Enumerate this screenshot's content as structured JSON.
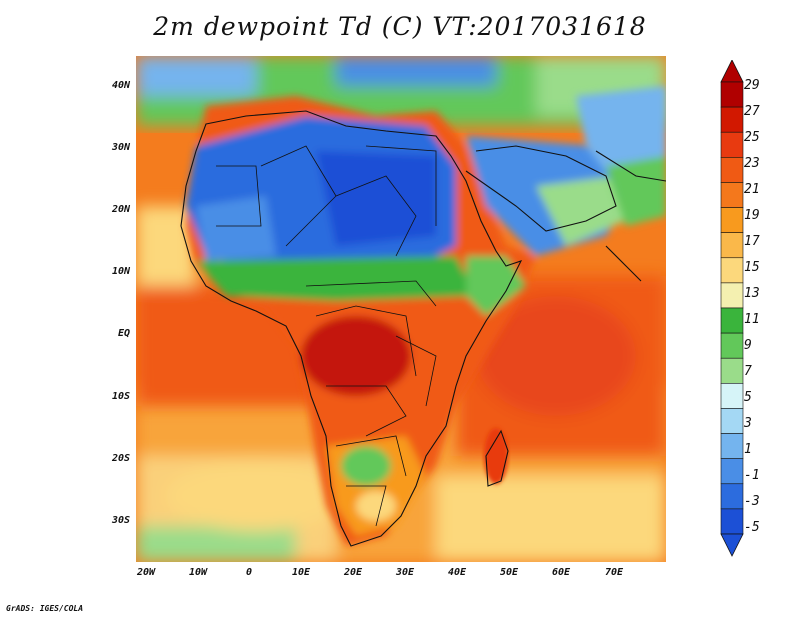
{
  "title": "2m dewpoint Td (C) VT:2017031618",
  "credit": "GrADS: IGES/COLA",
  "map": {
    "lat_labels": [
      "40N",
      "30N",
      "20N",
      "10N",
      "EQ",
      "10S",
      "20S",
      "30S"
    ],
    "lon_labels": [
      "20W",
      "10W",
      "0",
      "10E",
      "20E",
      "30E",
      "40E",
      "50E",
      "60E",
      "70E"
    ],
    "lon_range": [
      -22,
      80
    ],
    "lat_range": [
      -36,
      45
    ]
  },
  "colorbar": {
    "labels": [
      "29",
      "27",
      "25",
      "23",
      "21",
      "19",
      "17",
      "15",
      "13",
      "11",
      "9",
      "7",
      "5",
      "3",
      "1",
      "-1",
      "-3",
      "-5"
    ],
    "colors": [
      "#b00000",
      "#d21800",
      "#e83a10",
      "#f05a14",
      "#f4781c",
      "#f89a1e",
      "#fab84a",
      "#fcd87c",
      "#f4f0b0",
      "#3ab43c",
      "#62c85a",
      "#9adc8a",
      "#d6f4f8",
      "#a4d8f4",
      "#74b4ee",
      "#4a8ee6",
      "#2c6cde",
      "#1c50d6"
    ]
  }
}
